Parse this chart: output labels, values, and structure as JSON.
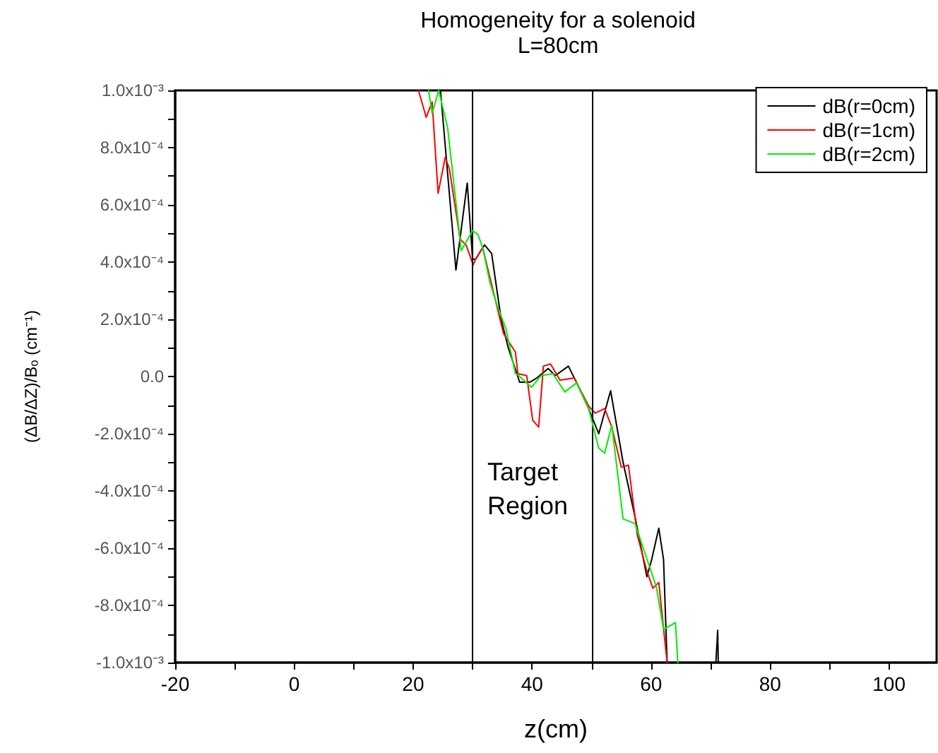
{
  "chart_data": {
    "type": "line",
    "title": "Homogeneity for a solenoid",
    "subtitle": "L=80cm",
    "xlabel": "z(cm)",
    "ylabel": "(ΔB/ΔZ)/Bₒ (cm⁻¹)",
    "xlim": [
      -20,
      108
    ],
    "xticks": [
      -20,
      {
        "value": -10,
        "label": null
      },
      0,
      {
        "value": 10,
        "label": null
      },
      20,
      {
        "value": 30,
        "label": null
      },
      40,
      {
        "value": 50,
        "label": null
      },
      60,
      {
        "value": 70,
        "label": null
      },
      80,
      {
        "value": 90,
        "label": null
      },
      100
    ],
    "ylim": [
      -0.001,
      0.001
    ],
    "yticks": [
      {
        "value": -0.001,
        "label": "-1.0x10⁻³"
      },
      {
        "value": -0.0009,
        "label": null
      },
      {
        "value": -0.0008,
        "label": "-8.0x10⁻⁴"
      },
      {
        "value": -0.0007,
        "label": null
      },
      {
        "value": -0.0006,
        "label": "-6.0x10⁻⁴"
      },
      {
        "value": -0.0005,
        "label": null
      },
      {
        "value": -0.0004,
        "label": "-4.0x10⁻⁴"
      },
      {
        "value": -0.0003,
        "label": null
      },
      {
        "value": -0.0002,
        "label": "-2.0x10⁻⁴"
      },
      {
        "value": -0.0001,
        "label": null
      },
      {
        "value": 0,
        "label": "0.0"
      },
      {
        "value": 0.0001,
        "label": null
      },
      {
        "value": 0.0002,
        "label": "2.0x10⁻⁴"
      },
      {
        "value": 0.0003,
        "label": null
      },
      {
        "value": 0.0004,
        "label": "4.0x10⁻⁴"
      },
      {
        "value": 0.0005,
        "label": null
      },
      {
        "value": 0.0006,
        "label": "6.0x10⁻⁴"
      },
      {
        "value": 0.0007,
        "label": null
      },
      {
        "value": 0.0008,
        "label": "8.0x10⁻⁴"
      },
      {
        "value": 0.0009,
        "label": null
      },
      {
        "value": 0.001,
        "label": "1.0x10⁻³"
      }
    ],
    "grid": false,
    "legend": "top right",
    "marker": "none",
    "line_style": "solid",
    "ref_lines": [
      {
        "axis": "x",
        "value": 30,
        "color": "#000000"
      },
      {
        "axis": "x",
        "value": 50,
        "color": "#000000"
      }
    ],
    "annotations": [
      "Target Region"
    ],
    "series": [
      {
        "name": "dB(r=0cm)",
        "color": "#000000",
        "x": [
          24.6,
          27.2,
          29.1,
          30,
          30.5,
          32,
          33.2,
          34.8,
          36,
          37.6,
          37.9,
          39.6,
          40.8,
          42.7,
          43.9,
          46.1,
          47.5,
          49.5,
          51.2,
          53.2,
          55.3,
          57.3,
          59.3,
          60.1,
          61.3,
          62.1,
          62.7,
          66,
          70.9,
          71.2,
          71.3
        ],
        "values": [
          0.001,
          0.000372,
          0.000676,
          0.00041,
          0.00041,
          0.00046,
          0.00043,
          0.0002,
          0.0001,
          0,
          -2e-05,
          -2e-05,
          -5e-06,
          2.8e-05,
          3e-06,
          3.6e-05,
          -2.2e-05,
          -0.000112,
          -0.0002,
          -5e-05,
          -0.0003,
          -0.00049,
          -0.0007,
          -0.00064,
          -0.00053,
          -0.00064,
          -0.001,
          null,
          -0.001,
          -0.000887,
          -0.001
        ]
      },
      {
        "name": "dB(r=1cm)",
        "color": "#ff0000",
        "x": [
          20.9,
          22.2,
          23.2,
          24.2,
          25.4,
          26.1,
          27.9,
          28.9,
          30.1,
          30.5,
          31.7,
          35.2,
          37.2,
          37.6,
          39.1,
          40.1,
          41.1,
          41.9,
          43.1,
          44.7,
          47.1,
          49.5,
          50.6,
          52.2,
          53.4,
          55,
          56.2,
          57.7,
          59.3,
          60.3,
          61.3,
          62.7
        ],
        "values": [
          0.001,
          0.000906,
          0.00096,
          0.00064,
          0.000766,
          0.000726,
          0.00048,
          0.00046,
          0.00039,
          0.00041,
          0.00045,
          0.00015,
          8.5e-05,
          1e-05,
          3e-06,
          -0.000153,
          -0.000177,
          3.6e-05,
          4.4e-05,
          -1.3e-05,
          -5e-06,
          -0.000103,
          -0.000128,
          -0.000112,
          -0.000177,
          -0.000317,
          -0.00031,
          -0.000555,
          -0.00068,
          -0.00074,
          -0.00072,
          -0.001
        ]
      },
      {
        "name": "dB(r=2cm)",
        "color": "#00ee00",
        "x": [
          22.6,
          23.2,
          24.3,
          25.8,
          28.1,
          30,
          30.9,
          31.7,
          32.9,
          34.1,
          35.6,
          37.2,
          37.6,
          39.9,
          41.5,
          43.5,
          45.5,
          47.5,
          49.5,
          51.2,
          52.2,
          53.4,
          55.3,
          57.3,
          58.9,
          60.9,
          62.1,
          64.1,
          64.5
        ],
        "values": [
          0.001,
          0.00092,
          0.001,
          0.00087,
          0.00044,
          0.00051,
          0.000496,
          0.00045,
          0.00033,
          0.00025,
          0.000167,
          1e-05,
          6e-06,
          -3.8e-05,
          3e-06,
          1e-05,
          -5.4e-05,
          -2.2e-05,
          -0.000112,
          -0.00025,
          -0.000268,
          -0.00017,
          -0.000498,
          -0.000514,
          -0.000613,
          -0.000736,
          -0.000884,
          -0.00086,
          -0.001
        ]
      }
    ]
  }
}
